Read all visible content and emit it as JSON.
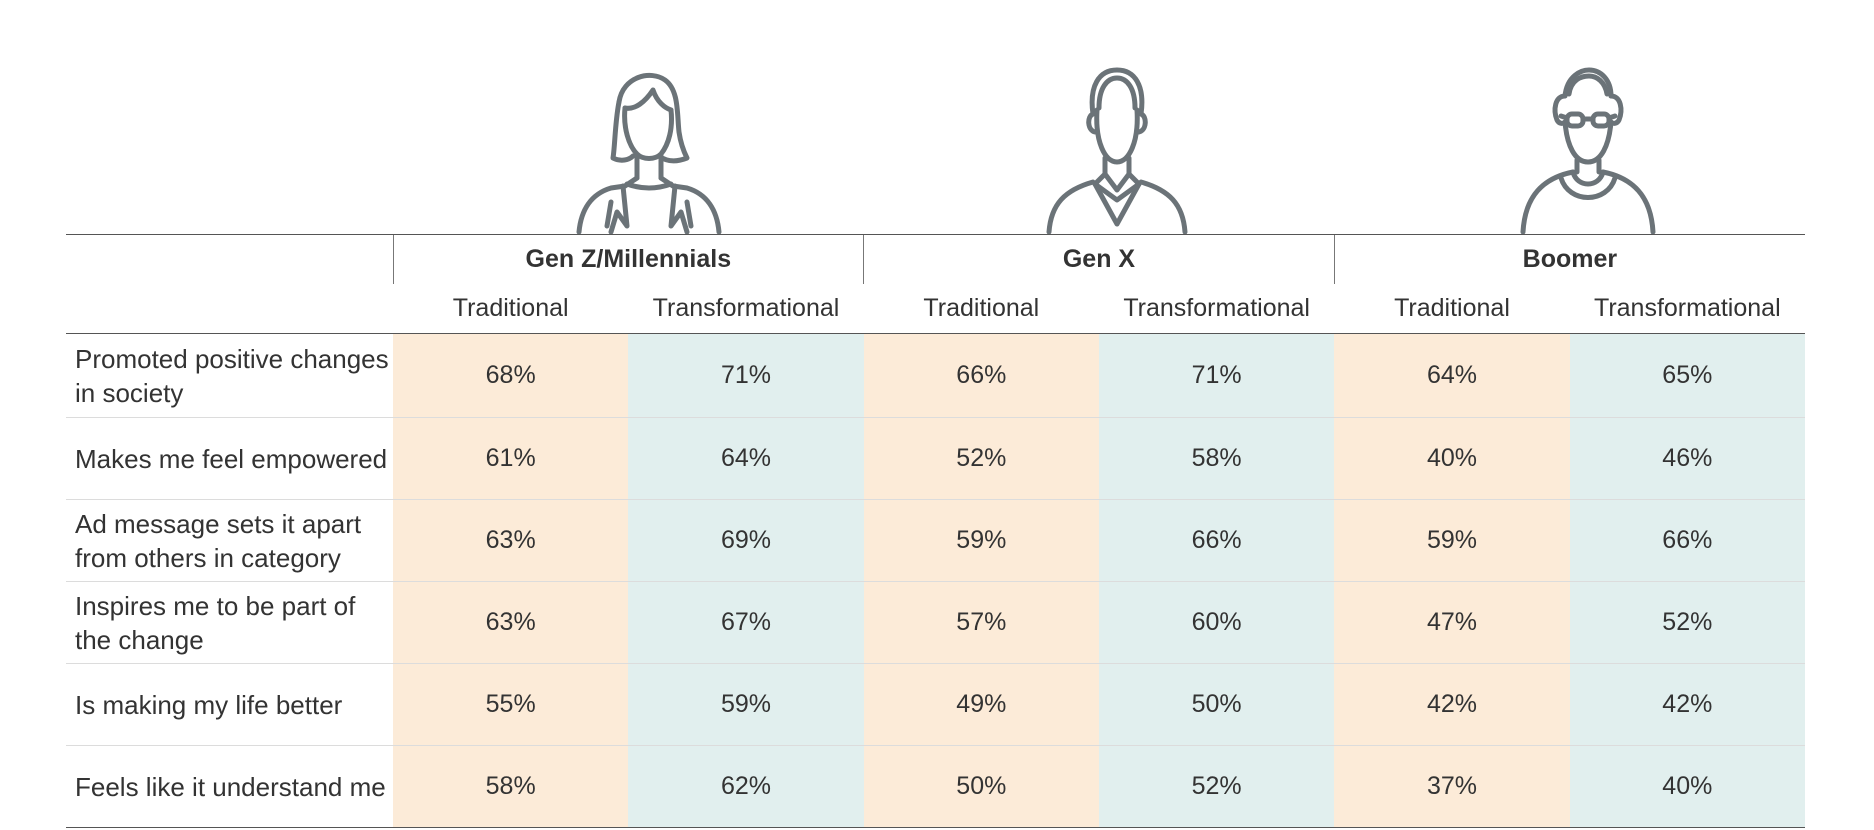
{
  "chart_data": {
    "type": "table",
    "groups": [
      "Gen Z/Millennials",
      "Gen X",
      "Boomer"
    ],
    "subcolumns": [
      "Traditional",
      "Transformational"
    ],
    "colors": {
      "traditional_bg": "#fcebd8",
      "transformational_bg": "#e1efee",
      "icon_stroke": "#6b7378"
    },
    "icons": [
      "woman-icon",
      "man-icon",
      "older-man-glasses-icon"
    ],
    "rows": [
      {
        "label": "Promoted positive changes in society",
        "values": [
          "68%",
          "71%",
          "66%",
          "71%",
          "64%",
          "65%"
        ]
      },
      {
        "label": "Makes me feel empowered",
        "values": [
          "61%",
          "64%",
          "52%",
          "58%",
          "40%",
          "46%"
        ]
      },
      {
        "label": "Ad message sets it apart from others in category",
        "values": [
          "63%",
          "69%",
          "59%",
          "66%",
          "59%",
          "66%"
        ]
      },
      {
        "label": "Inspires me to be part of the change",
        "values": [
          "63%",
          "67%",
          "57%",
          "60%",
          "47%",
          "52%"
        ]
      },
      {
        "label": "Is making my life better",
        "values": [
          "55%",
          "59%",
          "49%",
          "50%",
          "42%",
          "42%"
        ]
      },
      {
        "label": "Feels like it understand me",
        "values": [
          "58%",
          "62%",
          "50%",
          "52%",
          "37%",
          "40%"
        ]
      }
    ]
  }
}
